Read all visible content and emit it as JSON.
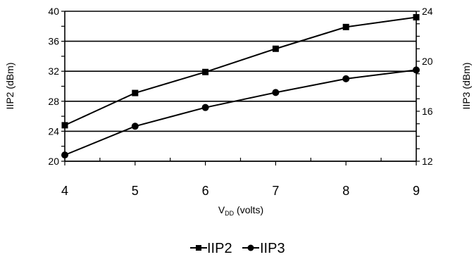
{
  "chart_data": {
    "type": "line",
    "xlabel_main": "V",
    "xlabel_sub": "DD",
    "xlabel_tail": " (volts)",
    "ylabel_left": "IIP2 (dBm)",
    "ylabel_right": "IIP3 (dBm)",
    "x_ticks": [
      "4",
      "5",
      "6",
      "7",
      "8",
      "9"
    ],
    "xlim": [
      4,
      9
    ],
    "ylim_left": [
      20,
      40
    ],
    "yticks_left": [
      "20",
      "24",
      "28",
      "32",
      "36",
      "40"
    ],
    "ylim_right": [
      12,
      24
    ],
    "yticks_right": [
      "12",
      "16",
      "20",
      "24"
    ],
    "grid": "horizontal",
    "legend_position": "bottom-center",
    "series": [
      {
        "name": "IIP2",
        "axis": "left",
        "marker": "square",
        "color": "#000000",
        "x": [
          4,
          5,
          6,
          7,
          8,
          9
        ],
        "y": [
          24.8,
          29.1,
          31.9,
          35.0,
          37.9,
          39.2
        ]
      },
      {
        "name": "IIP3",
        "axis": "right",
        "marker": "circle",
        "color": "#000000",
        "x": [
          4,
          5,
          6,
          7,
          8,
          9
        ],
        "y": [
          12.5,
          14.8,
          16.3,
          17.5,
          18.6,
          19.3
        ]
      }
    ]
  }
}
